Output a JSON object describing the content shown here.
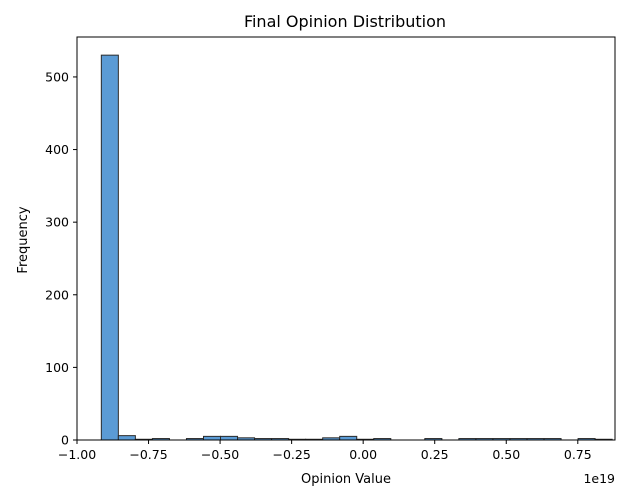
{
  "chart_data": {
    "type": "bar",
    "title": "Final Opinion Distribution",
    "xlabel": "Opinion Value",
    "ylabel": "Frequency",
    "x_offset_label": "1e19",
    "bar_color": "#5b9bd5",
    "edge_color": "#2b2b2b",
    "xlim": [
      -1.0,
      0.88
    ],
    "ylim": [
      0,
      555
    ],
    "grid": false,
    "x_ticks": [
      {
        "value": -1.0,
        "label": "−1.00"
      },
      {
        "value": -0.75,
        "label": "−0.75"
      },
      {
        "value": -0.5,
        "label": "−0.50"
      },
      {
        "value": -0.25,
        "label": "−0.25"
      },
      {
        "value": 0.0,
        "label": "0.00"
      },
      {
        "value": 0.25,
        "label": "0.25"
      },
      {
        "value": 0.5,
        "label": "0.50"
      },
      {
        "value": 0.75,
        "label": "0.75"
      }
    ],
    "y_ticks": [
      {
        "value": 0,
        "label": "0"
      },
      {
        "value": 100,
        "label": "100"
      },
      {
        "value": 200,
        "label": "200"
      },
      {
        "value": 300,
        "label": "300"
      },
      {
        "value": 400,
        "label": "400"
      },
      {
        "value": 500,
        "label": "500"
      }
    ],
    "bin_edges": [
      -0.915,
      -0.8555,
      -0.796,
      -0.7365,
      -0.677,
      -0.6175,
      -0.558,
      -0.4985,
      -0.439,
      -0.3795,
      -0.32,
      -0.2605,
      -0.201,
      -0.1415,
      -0.082,
      -0.0225,
      0.037,
      0.0965,
      0.156,
      0.2155,
      0.275,
      0.3345,
      0.394,
      0.4535,
      0.513,
      0.5725,
      0.632,
      0.6915,
      0.751,
      0.8105,
      0.87
    ],
    "counts": [
      530,
      6,
      1,
      2,
      0,
      2,
      5,
      5,
      3,
      2,
      2,
      1,
      1,
      3,
      5,
      1,
      2,
      0,
      0,
      2,
      0,
      2,
      2,
      2,
      2,
      2,
      2,
      0,
      2,
      1
    ]
  }
}
